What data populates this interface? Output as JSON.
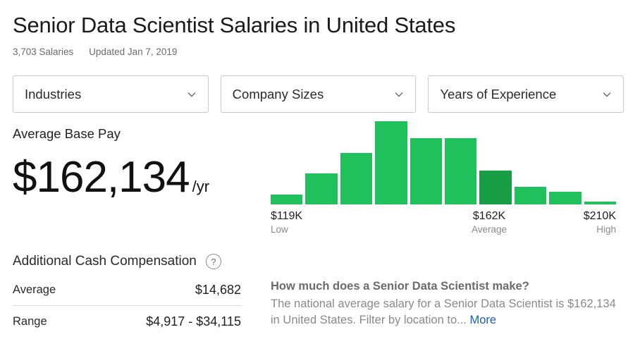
{
  "page": {
    "title": "Senior Data Scientist Salaries in United States",
    "salary_count": "3,703 Salaries",
    "updated": "Updated Jan 7, 2019"
  },
  "filters": [
    {
      "label": "Industries",
      "icon": "chevron-down-icon"
    },
    {
      "label": "Company Sizes",
      "icon": "chevron-down-icon"
    },
    {
      "label": "Years of Experience",
      "icon": "chevron-down-icon"
    }
  ],
  "base_pay": {
    "label": "Average Base Pay",
    "value": "$162,134",
    "unit": "/yr"
  },
  "chart_data": {
    "type": "bar",
    "values": [
      0.12,
      0.37,
      0.62,
      1.0,
      0.8,
      0.8,
      0.41,
      0.21,
      0.15,
      0.03
    ],
    "highlight_index": 6,
    "colors": {
      "bar": "#20c05c",
      "highlight": "#1a9e45"
    },
    "ticks": [
      {
        "value": "$119K",
        "label": "Low"
      },
      {
        "value": "$162K",
        "label": "Average"
      },
      {
        "value": "$210K",
        "label": "High"
      }
    ]
  },
  "additional_cash": {
    "title": "Additional Cash Compensation",
    "help_icon": "?",
    "rows": [
      {
        "label": "Average",
        "value": "$14,682"
      },
      {
        "label": "Range",
        "value": "$4,917 - $34,115"
      }
    ]
  },
  "faq": {
    "question": "How much does a Senior Data Scientist make?",
    "answer": "The national average salary for a Senior Data Scientist is $162,134 in United States. Filter by location to...",
    "more_label": "More",
    "link_color": "#1861bf"
  }
}
